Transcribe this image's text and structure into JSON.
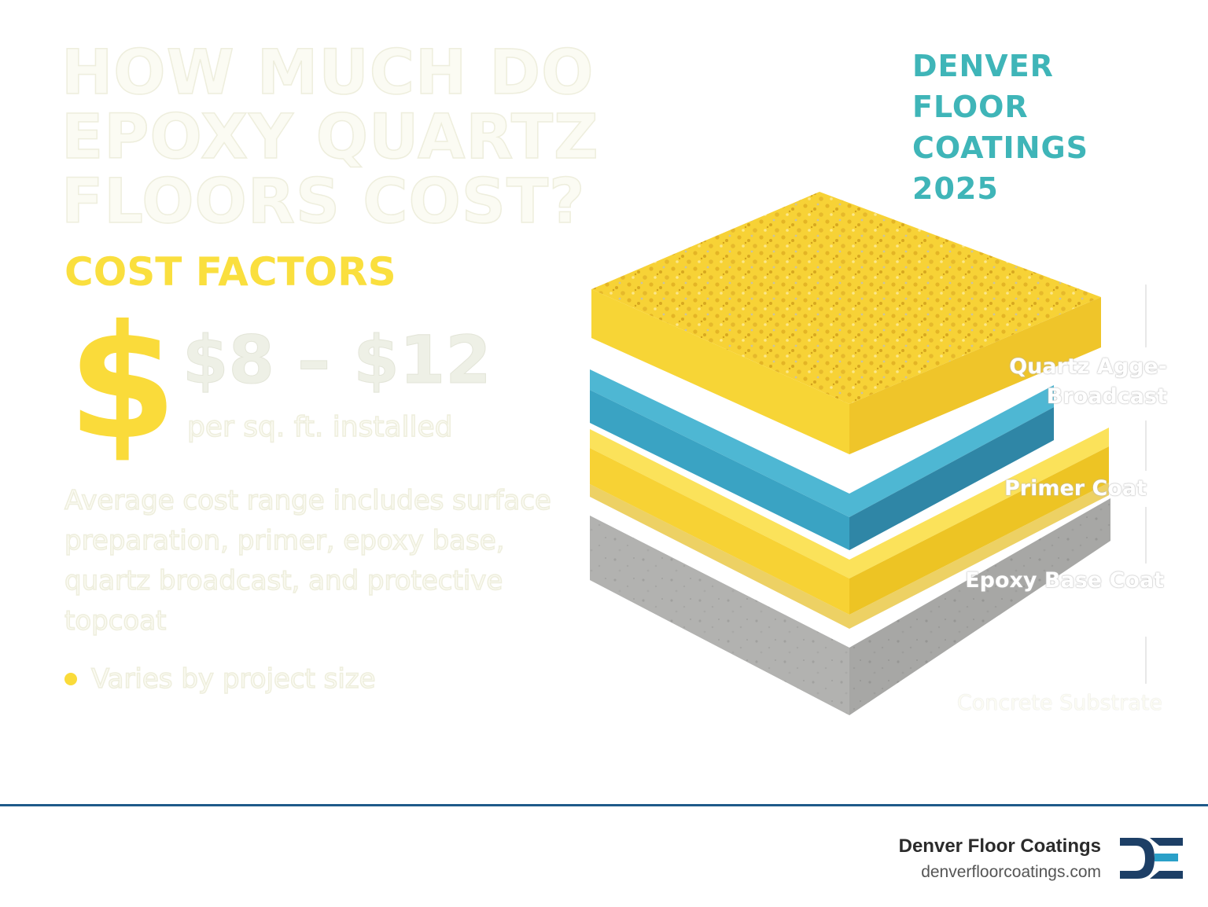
{
  "header": {
    "title": "HOW MUCH DO EPOXY QUARTZ FLOORS COST?",
    "brand_line1": "DENVER FLOOR",
    "brand_line2": "COATINGS 2025"
  },
  "cost_panel": {
    "heading": "COST FACTORS",
    "currency_symbol": "$",
    "price_range": "$8 – $12",
    "price_unit": "per sq. ft. installed",
    "description": "Average cost range includes surface preparation, primer, epoxy base, quartz broadcast, and protective topcoat",
    "bullets": [
      "Varies by project size"
    ]
  },
  "illustration": {
    "layers": [
      {
        "label": "Quartz Agge- Broadcast",
        "color": "#f8d534"
      },
      {
        "label": "Primer Coat",
        "color": "#3aa3c3"
      },
      {
        "label": "Epoxy Base Coat",
        "color": "#f9d836"
      },
      {
        "label": "Concrete Substrate",
        "color": "#b8b8b6"
      }
    ]
  },
  "footer": {
    "company": "Denver Floor Coatings",
    "url": "denverfloorcoatings.com",
    "logo_icon": "dfc-monogram-logo",
    "rule_color": "#1e5a8a"
  },
  "colors": {
    "yellow": "#fadb3a",
    "teal": "#3fb5b8",
    "blue": "#3aa3c3",
    "concrete": "#b8b8b6",
    "navy": "#1d3f66"
  }
}
